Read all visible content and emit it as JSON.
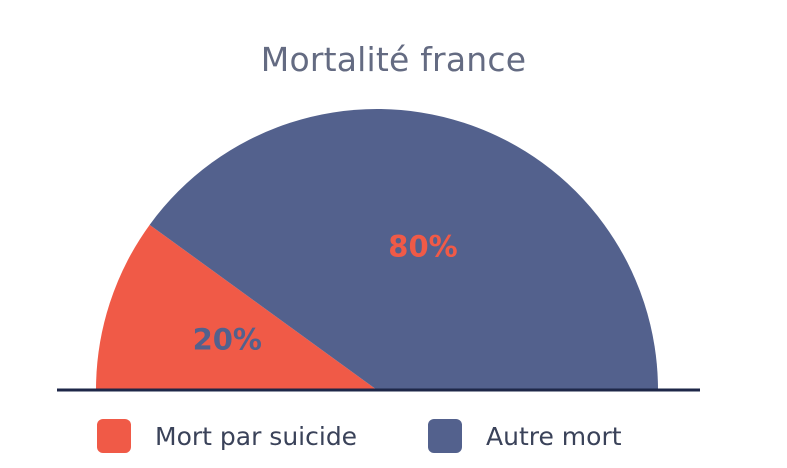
{
  "chart_data": {
    "type": "pie",
    "variant": "semicircle",
    "title": "Mortalité france",
    "categories": [
      "Mort par suicide",
      "Autre mort"
    ],
    "values": [
      20,
      80
    ],
    "labels": [
      "20%",
      "80%"
    ],
    "colors": [
      "#f05a47",
      "#53618d"
    ],
    "label_colors": [
      "#53618d",
      "#f05a47"
    ],
    "legend_position": "bottom"
  }
}
